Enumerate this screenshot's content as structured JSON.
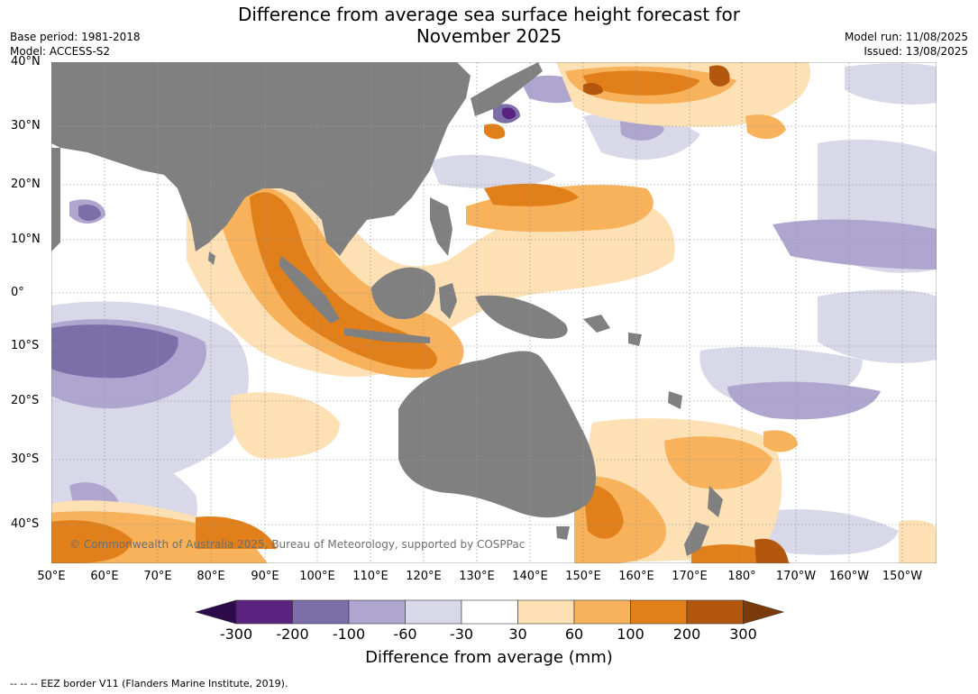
{
  "title_line1": "Difference from average sea surface height forecast for",
  "title_line2": "November 2025",
  "meta_left": {
    "base_period": "Base period: 1981-2018",
    "model": "Model: ACCESS-S2"
  },
  "meta_right": {
    "model_run": "Model run: 11/08/2025",
    "issued": "Issued: 13/08/2025"
  },
  "copyright": "© Commonwealth of Australia 2025, Bureau of Meteorology, supported by COSPPac",
  "lat_labels": [
    "40°N",
    "30°N",
    "20°N",
    "10°N",
    "0°",
    "10°S",
    "20°S",
    "30°S",
    "40°S"
  ],
  "lon_labels": [
    "50°E",
    "60°E",
    "70°E",
    "80°E",
    "90°E",
    "100°E",
    "110°E",
    "120°E",
    "130°E",
    "140°E",
    "150°E",
    "160°E",
    "170°E",
    "180°",
    "170°W",
    "160°W",
    "150°W"
  ],
  "colorbar": {
    "label": "Difference from average (mm)",
    "ticks": [
      "-300",
      "-200",
      "-100",
      "-60",
      "-30",
      "30",
      "60",
      "100",
      "200",
      "300"
    ],
    "colors": [
      "#2d0a4a",
      "#59237f",
      "#7c6ea9",
      "#aea6cf",
      "#d8d8e9",
      "#ffffff",
      "#fde0b4",
      "#f7b25b",
      "#e1801a",
      "#b2570d",
      "#7a3a0c"
    ]
  },
  "colors": {
    "land": "#808080",
    "ocean_neutral": "#ffffff",
    "grid": "#999999"
  },
  "footnote": "--  --  -- EEZ border V11 (Flanders Marine Institute, 2019)."
}
